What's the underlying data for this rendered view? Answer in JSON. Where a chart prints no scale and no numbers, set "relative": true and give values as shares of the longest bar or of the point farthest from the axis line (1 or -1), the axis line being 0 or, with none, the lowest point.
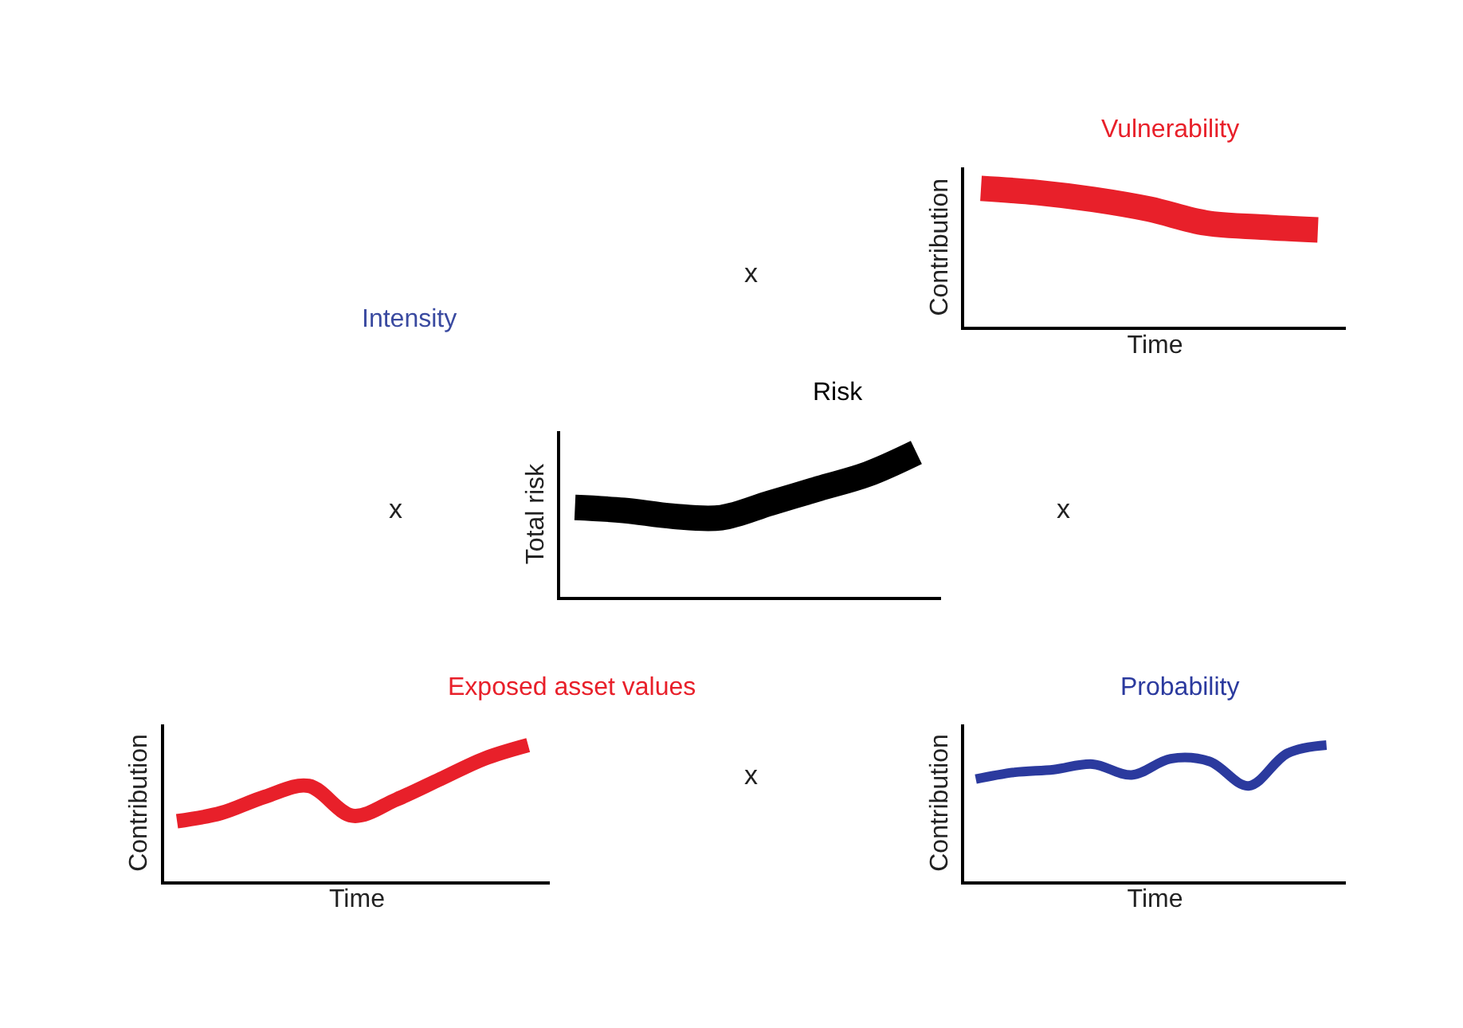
{
  "chart_data": [
    {
      "type": "other",
      "annotations": [
        "Intensity",
        "x",
        "x",
        "x",
        "x"
      ]
    },
    {
      "type": "line",
      "title": "Risk",
      "ylabel": "Total risk",
      "relative": true,
      "tick_labels": false,
      "categories": [
        null,
        null,
        null,
        null,
        null,
        null,
        null,
        null
      ],
      "series": [
        {
          "color": "#000000",
          "values": [
            0.62,
            0.6,
            0.56,
            0.55,
            0.65,
            0.75,
            0.85,
            1.0
          ]
        }
      ]
    },
    {
      "type": "line",
      "title": "Vulnerability",
      "xlabel": "Time",
      "ylabel": "Contribution",
      "relative": true,
      "tick_labels": false,
      "categories": [
        null,
        null,
        null,
        null,
        null,
        null,
        null
      ],
      "series": [
        {
          "color": "#e8202a",
          "values": [
            1.0,
            0.97,
            0.92,
            0.85,
            0.75,
            0.72,
            0.7
          ]
        }
      ]
    },
    {
      "type": "line",
      "title": "Exposed asset values",
      "xlabel": "Time",
      "ylabel": "Contribution",
      "relative": true,
      "tick_labels": false,
      "categories": [
        null,
        null,
        null,
        null,
        null,
        null,
        null,
        null,
        null
      ],
      "series": [
        {
          "color": "#e8202a",
          "values": [
            0.44,
            0.5,
            0.62,
            0.7,
            0.48,
            0.6,
            0.75,
            0.9,
            1.0
          ]
        }
      ]
    },
    {
      "type": "line",
      "title": "Probability",
      "xlabel": "Time",
      "ylabel": "Contribution",
      "relative": true,
      "tick_labels": false,
      "categories": [
        null,
        null,
        null,
        null,
        null,
        null,
        null,
        null,
        null,
        null
      ],
      "series": [
        {
          "color": "#2b3a9e",
          "values": [
            0.75,
            0.8,
            0.82,
            0.86,
            0.78,
            0.9,
            0.88,
            0.7,
            0.94,
            1.0
          ]
        }
      ]
    }
  ]
}
